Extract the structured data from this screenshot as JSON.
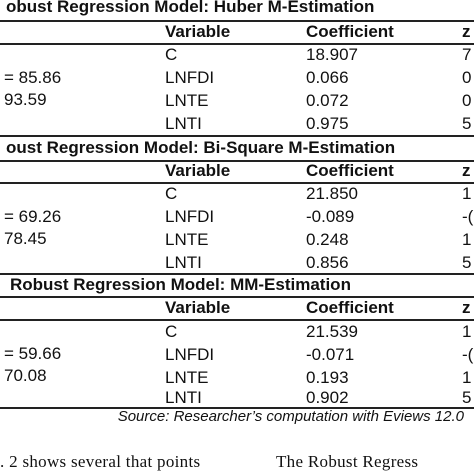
{
  "sections": [
    {
      "title": "obust Regression Model: Huber M-Estimation",
      "headers": [
        "Variable",
        "Coefficient",
        "z"
      ],
      "stats": [
        "= 85.86",
        "93.59"
      ],
      "rows": [
        {
          "variable": "C",
          "coefficient": "18.907",
          "z": "7"
        },
        {
          "variable": "LNFDI",
          "coefficient": "0.066",
          "z": "0"
        },
        {
          "variable": "LNTE",
          "coefficient": "0.072",
          "z": "0"
        },
        {
          "variable": "LNTI",
          "coefficient": "0.975",
          "z": "5"
        }
      ]
    },
    {
      "title": "oust Regression Model: Bi-Square M-Estimation",
      "headers": [
        "Variable",
        "Coefficient",
        "z"
      ],
      "stats": [
        "= 69.26",
        "78.45"
      ],
      "rows": [
        {
          "variable": "C",
          "coefficient": "21.850",
          "z": "1"
        },
        {
          "variable": "LNFDI",
          "coefficient": "-0.089",
          "z": "-("
        },
        {
          "variable": "LNTE",
          "coefficient": "0.248",
          "z": "1"
        },
        {
          "variable": "LNTI",
          "coefficient": "0.856",
          "z": "5"
        }
      ]
    },
    {
      "title": "Robust Regression Model: MM-Estimation",
      "headers": [
        "Variable",
        "Coefficient",
        "z"
      ],
      "stats": [
        "= 59.66",
        "70.08"
      ],
      "rows": [
        {
          "variable": "C",
          "coefficient": "21.539",
          "z": "1"
        },
        {
          "variable": "LNFDI",
          "coefficient": "-0.071",
          "z": "-("
        },
        {
          "variable": "LNTE",
          "coefficient": "0.193",
          "z": "1"
        },
        {
          "variable": "LNTI",
          "coefficient": "0.902",
          "z": "5"
        }
      ]
    }
  ],
  "source": "Source: Researcher’s computation with Eviews 12.0",
  "body_left": ". 2 shows several that points",
  "body_right": "The  Robust  Regress"
}
